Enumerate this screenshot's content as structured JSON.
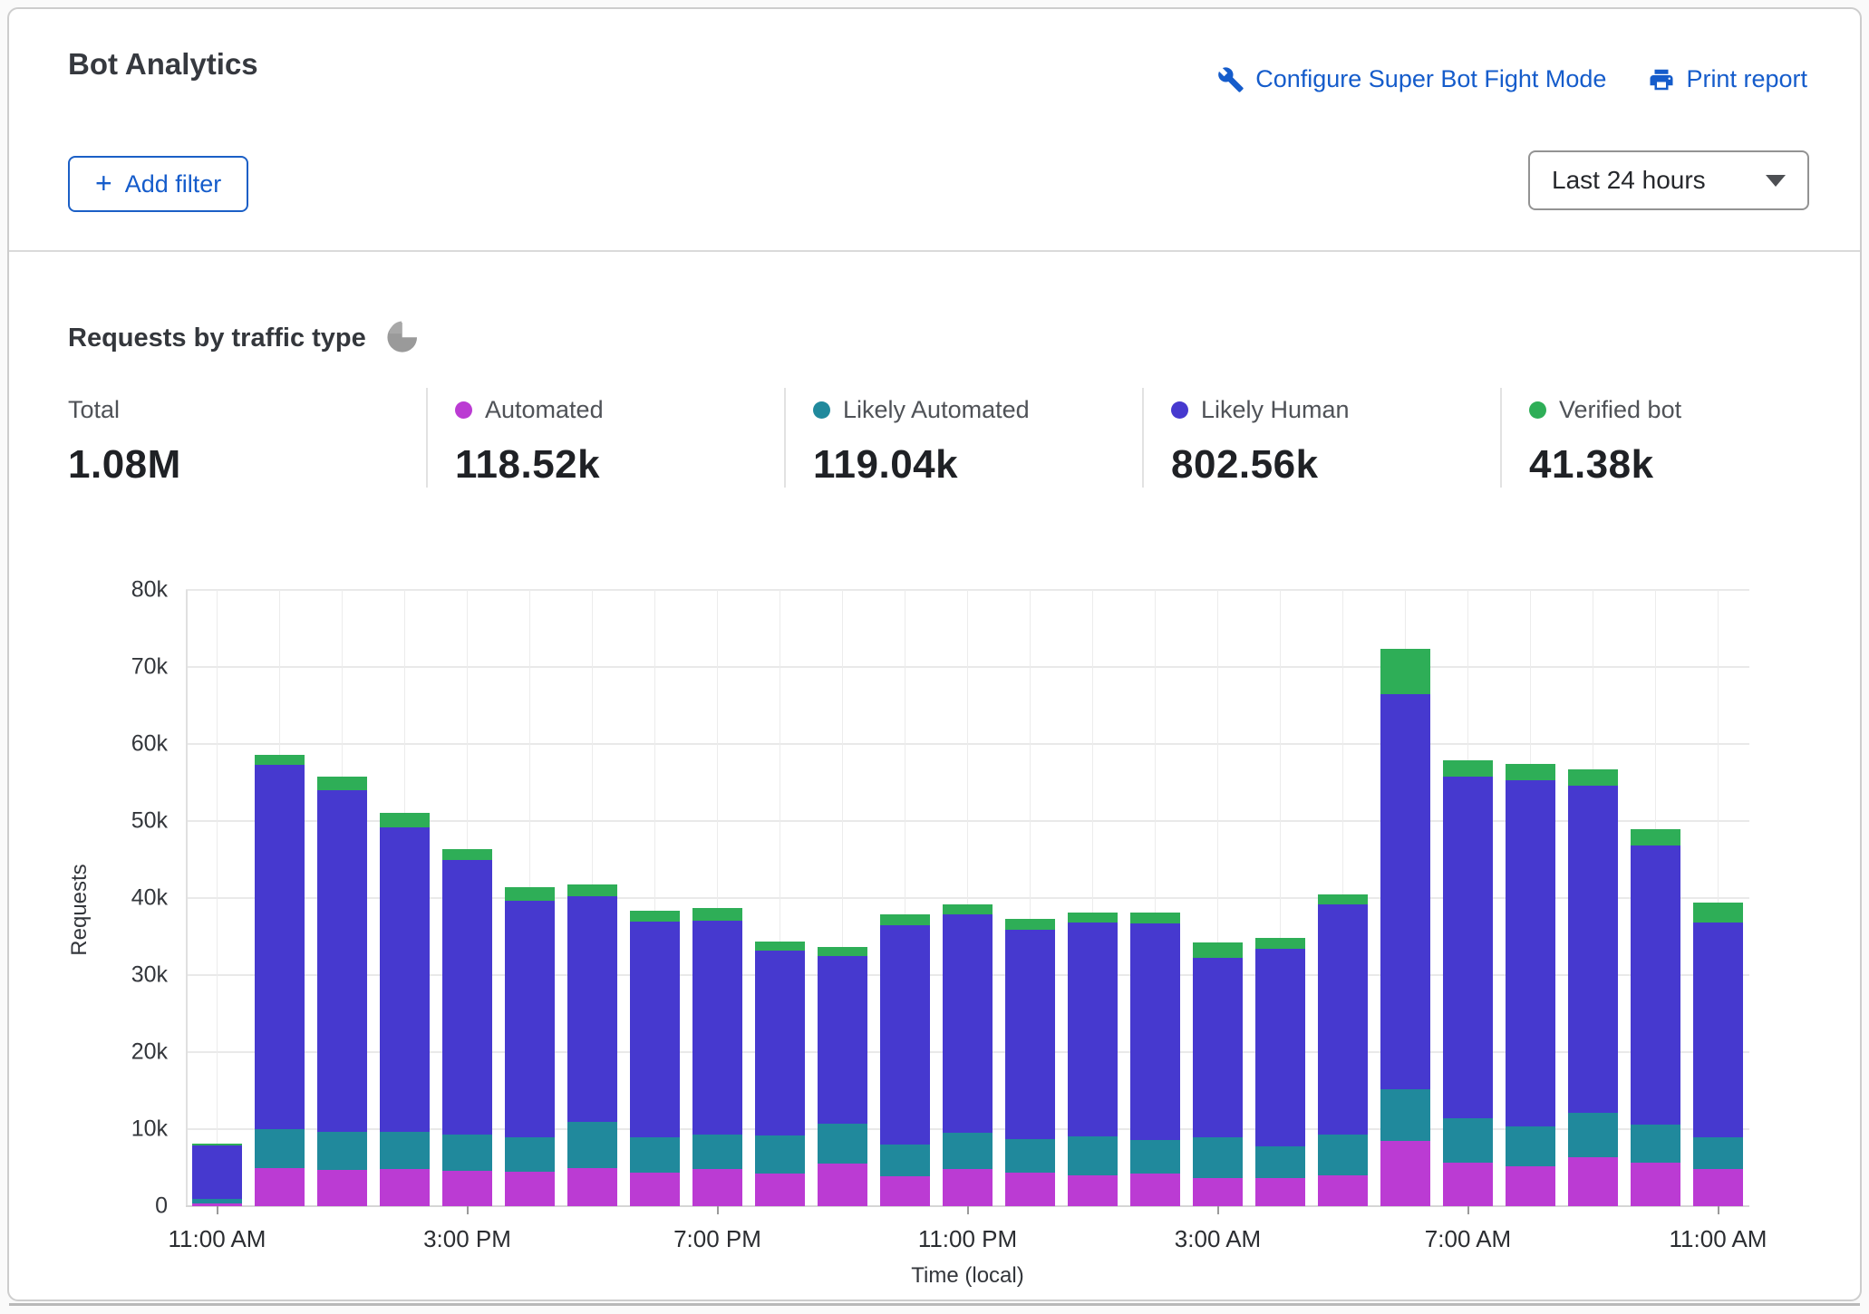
{
  "header": {
    "title": "Bot Analytics",
    "configure_link": "Configure Super Bot Fight Mode",
    "print_link": "Print report"
  },
  "controls": {
    "add_filter_label": "Add filter",
    "time_range": "Last 24 hours"
  },
  "section": {
    "title": "Requests by traffic type"
  },
  "stats": [
    {
      "label": "Total",
      "value": "1.08M",
      "color": null
    },
    {
      "label": "Automated",
      "value": "118.52k",
      "color": "#bb3bd3"
    },
    {
      "label": "Likely Automated",
      "value": "119.04k",
      "color": "#20899c"
    },
    {
      "label": "Likely Human",
      "value": "802.56k",
      "color": "#4639cf"
    },
    {
      "label": "Verified bot",
      "value": "41.38k",
      "color": "#2eae57"
    }
  ],
  "chart_data": {
    "type": "bar",
    "stacked": true,
    "title": "Requests by traffic type",
    "xlabel": "Time (local)",
    "ylabel": "Requests",
    "ylim": [
      0,
      80000
    ],
    "ytick_step": 10000,
    "grid": true,
    "categories": [
      "11:00 AM",
      "12:00 PM",
      "1:00 PM",
      "2:00 PM",
      "3:00 PM",
      "4:00 PM",
      "5:00 PM",
      "6:00 PM",
      "7:00 PM",
      "8:00 PM",
      "9:00 PM",
      "10:00 PM",
      "11:00 PM",
      "12:00 AM",
      "1:00 AM",
      "2:00 AM",
      "3:00 AM",
      "4:00 AM",
      "5:00 AM",
      "6:00 AM",
      "7:00 AM",
      "8:00 AM",
      "9:00 AM",
      "10:00 AM",
      "11:00 AM"
    ],
    "x_tick_every": 4,
    "x_tick_labels": [
      "11:00 AM",
      "3:00 PM",
      "7:00 PM",
      "11:00 PM",
      "3:00 AM",
      "7:00 AM",
      "11:00 AM"
    ],
    "series": [
      {
        "name": "Automated",
        "color": "#bb3bd3",
        "values": [
          400,
          5000,
          4700,
          4800,
          4600,
          4500,
          4900,
          4300,
          4800,
          4200,
          5500,
          3900,
          4800,
          4400,
          4000,
          4200,
          3700,
          3600,
          4000,
          8500,
          5600,
          5200,
          6300,
          5600,
          4800
        ]
      },
      {
        "name": "Likely Automated",
        "color": "#20899c",
        "values": [
          600,
          5000,
          4900,
          4900,
          4700,
          4500,
          6000,
          4600,
          4500,
          5000,
          5200,
          4100,
          4700,
          4300,
          5100,
          4400,
          5200,
          4200,
          5300,
          6700,
          5800,
          5200,
          5800,
          5000,
          4100
        ]
      },
      {
        "name": "Likely Human",
        "color": "#4639cf",
        "values": [
          6900,
          47300,
          44400,
          39500,
          35600,
          30700,
          29300,
          28000,
          27800,
          24000,
          21800,
          28500,
          28400,
          27200,
          27700,
          28100,
          23300,
          25600,
          29900,
          51300,
          44400,
          44900,
          42500,
          36200,
          27900
        ]
      },
      {
        "name": "Verified bot",
        "color": "#2eae57",
        "values": [
          200,
          1300,
          1800,
          1900,
          1500,
          1700,
          1600,
          1500,
          1600,
          1200,
          1100,
          1400,
          1300,
          1400,
          1300,
          1400,
          2000,
          1400,
          1300,
          5900,
          2100,
          2100,
          2100,
          2100,
          2600
        ]
      }
    ]
  }
}
